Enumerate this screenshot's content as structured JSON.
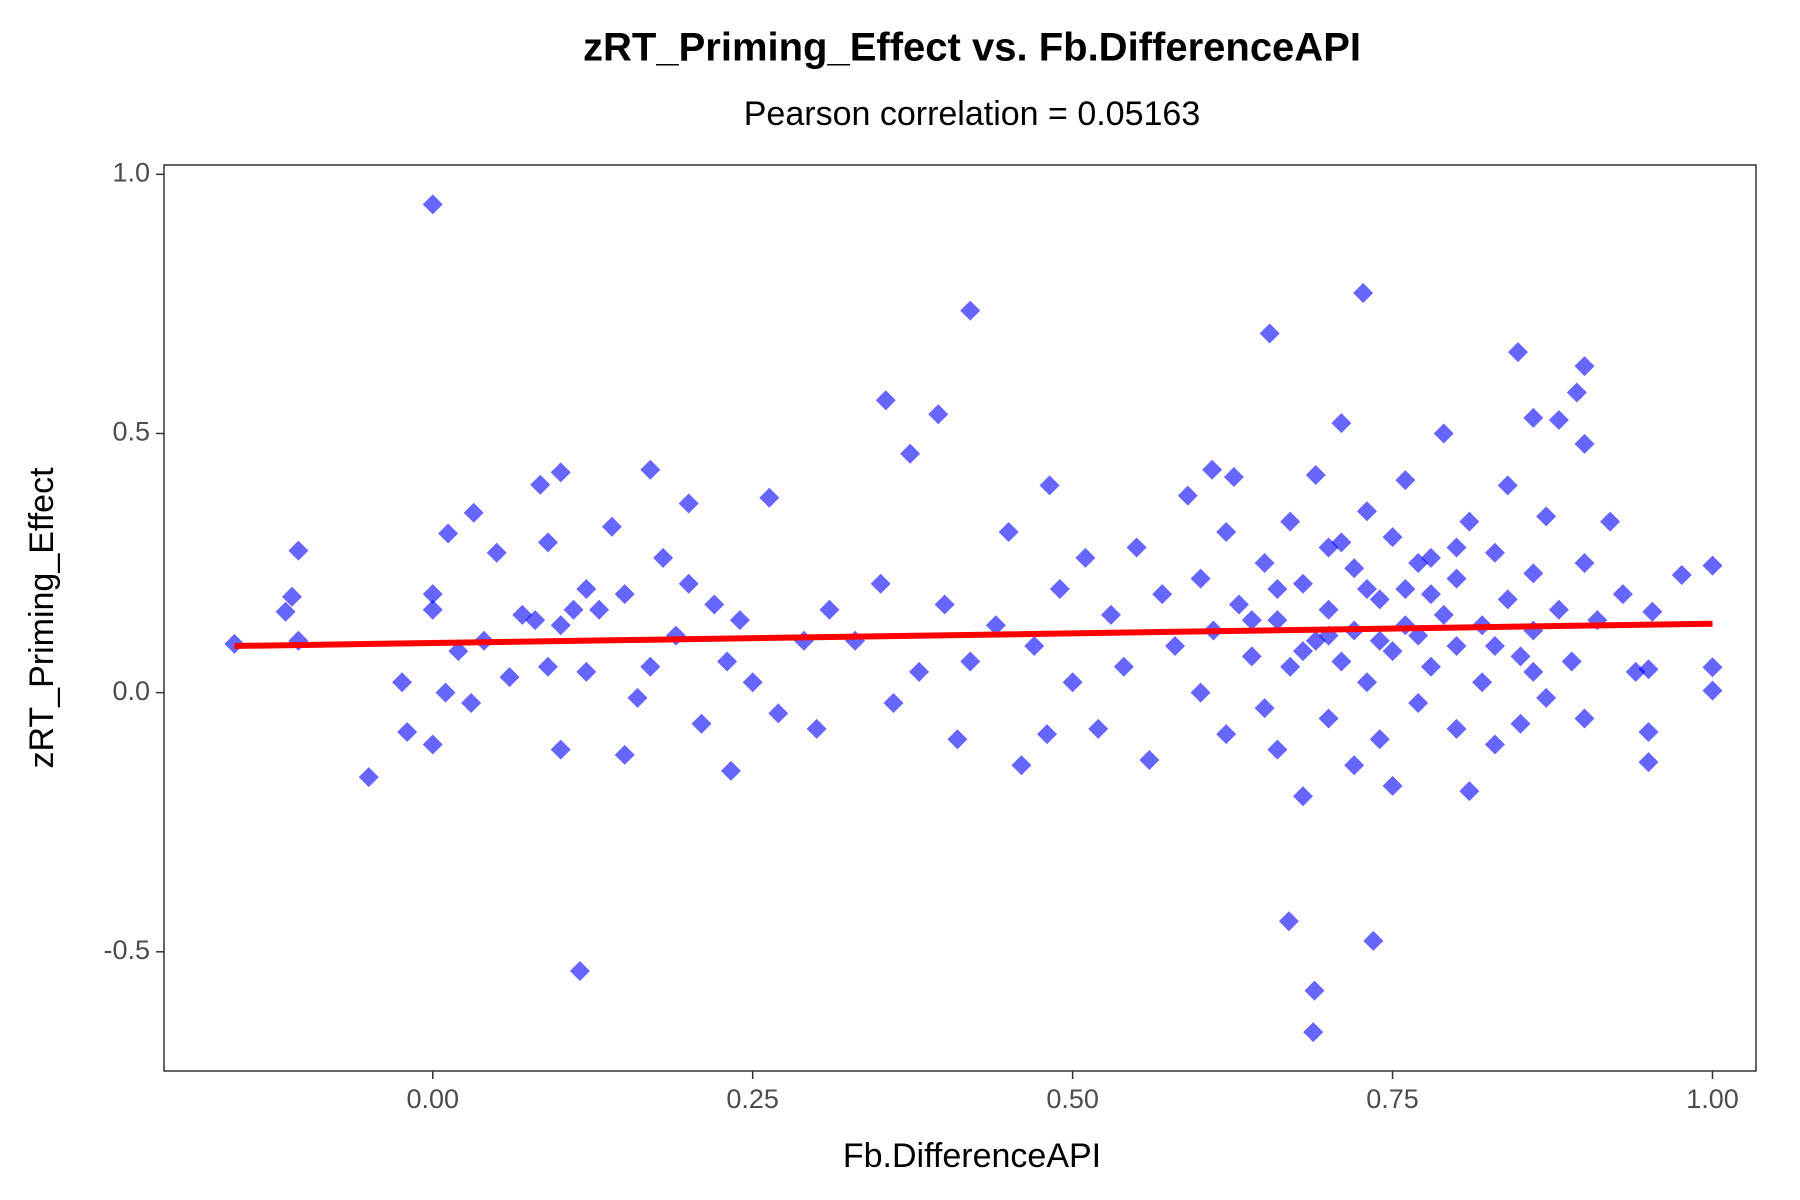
{
  "chart_data": {
    "type": "scatter",
    "title": "zRT_Priming_Effect vs. Fb.DifferenceAPI",
    "subtitle": "Pearson correlation = 0.05163",
    "x_label": "Fb.DifferenceAPI",
    "y_label": "zRT_Priming_Effect",
    "xlim": [
      -0.21,
      1.034
    ],
    "ylim": [
      -0.73,
      1.018
    ],
    "xticks": [
      {
        "value": 0,
        "label": "0.00"
      },
      {
        "value": 0.25,
        "label": "0.25"
      },
      {
        "value": 0.5,
        "label": "0.50"
      },
      {
        "value": 0.75,
        "label": "0.75"
      },
      {
        "value": 1,
        "label": "1.00"
      }
    ],
    "yticks": [
      {
        "value": -0.5,
        "label": "-0.5"
      },
      {
        "value": 0,
        "label": "0.0"
      },
      0.5,
      {
        "value": 1,
        "label": "1.0"
      }
    ],
    "points": {
      "color": "#0000ff",
      "opacity": 0.6,
      "x": [
        0,
        0.42,
        0.727,
        0.654,
        0.115,
        0.669,
        0.735,
        0.689,
        0.688,
        -0.05,
        -0.155,
        -0.105,
        -0.11,
        -0.115,
        -0.105,
        0.354,
        0.395,
        0.373,
        0.848,
        0.9,
        0.894,
        1.0,
        1.0,
        1.0,
        0.976,
        0.95,
        0.95,
        0.95,
        0.953,
        0.482,
        0.233,
        0,
        -0.02,
        -0.024,
        0.1,
        0.084,
        0.17,
        0.032,
        0.012,
        0.263,
        0.2,
        0.609,
        0.626,
        0.88,
        0.86,
        0.05,
        0.07,
        0.08,
        0.09,
        0.1,
        0.11,
        0.12,
        0.13,
        0.14,
        0.15,
        0.16,
        0.17,
        0.18,
        0.19,
        0.2,
        0.21,
        0.22,
        0.23,
        0.24,
        0.25,
        0.27,
        0.29,
        0.3,
        0.31,
        0.33,
        0.35,
        0.36,
        0.38,
        0.4,
        0.41,
        0.42,
        0.44,
        0.45,
        0.46,
        0.47,
        0.48,
        0.49,
        0.06,
        0.02,
        0.0,
        0.0,
        0.01,
        0.04,
        0.1,
        0.12,
        0.03,
        0.09,
        0.15,
        0.5,
        0.51,
        0.52,
        0.53,
        0.54,
        0.55,
        0.56,
        0.57,
        0.58,
        0.59,
        0.6,
        0.6,
        0.61,
        0.62,
        0.62,
        0.63,
        0.64,
        0.65,
        0.65,
        0.66,
        0.66,
        0.67,
        0.67,
        0.68,
        0.68,
        0.69,
        0.69,
        0.7,
        0.7,
        0.7,
        0.71,
        0.71,
        0.72,
        0.72,
        0.72,
        0.73,
        0.73,
        0.74,
        0.74,
        0.75,
        0.75,
        0.75,
        0.76,
        0.76,
        0.77,
        0.77,
        0.78,
        0.78,
        0.79,
        0.79,
        0.8,
        0.8,
        0.8,
        0.81,
        0.81,
        0.82,
        0.82,
        0.83,
        0.83,
        0.84,
        0.84,
        0.85,
        0.85,
        0.86,
        0.86,
        0.87,
        0.87,
        0.88,
        0.89,
        0.9,
        0.9,
        0.9,
        0.91,
        0.92,
        0.93,
        0.94,
        0.73,
        0.76,
        0.68,
        0.71,
        0.78,
        0.74,
        0.8,
        0.66,
        0.83,
        0.7,
        0.77,
        0.64,
        0.86
      ],
      "y": [
        0.942,
        0.737,
        0.771,
        0.693,
        -0.537,
        -0.441,
        -0.479,
        -0.575,
        -0.655,
        -0.163,
        0.094,
        0.274,
        0.185,
        0.156,
        0.1,
        0.564,
        0.537,
        0.461,
        0.657,
        0.63,
        0.579,
        0.245,
        0.049,
        0.004,
        0.227,
        0.045,
        -0.076,
        -0.134,
        0.156,
        0.4,
        -0.151,
        -0.1,
        -0.076,
        0.02,
        0.425,
        0.401,
        0.43,
        0.347,
        0.307,
        0.376,
        0.365,
        0.43,
        0.416,
        0.526,
        0.53,
        0.27,
        0.15,
        0.14,
        0.05,
        0.13,
        0.16,
        0.04,
        0.16,
        0.32,
        0.19,
        -0.01,
        0.05,
        0.26,
        0.11,
        0.21,
        -0.06,
        0.17,
        0.06,
        0.14,
        0.02,
        -0.04,
        0.1,
        -0.07,
        0.16,
        0.1,
        0.21,
        -0.02,
        0.04,
        0.17,
        -0.09,
        0.06,
        0.13,
        0.31,
        -0.14,
        0.09,
        -0.08,
        0.2,
        0.03,
        0.08,
        0.19,
        0.16,
        0.0,
        0.1,
        -0.11,
        0.2,
        -0.02,
        0.29,
        -0.12,
        0.02,
        0.26,
        -0.07,
        0.15,
        0.05,
        0.28,
        -0.13,
        0.19,
        0.09,
        0.38,
        0.0,
        0.22,
        0.12,
        0.31,
        -0.08,
        0.17,
        0.07,
        0.25,
        -0.03,
        0.14,
        -0.11,
        0.33,
        0.05,
        0.21,
        -0.2,
        0.1,
        0.42,
        0.28,
        -0.05,
        0.16,
        0.06,
        0.52,
        0.24,
        -0.14,
        0.12,
        0.35,
        0.02,
        0.18,
        -0.09,
        0.3,
        0.08,
        -0.18,
        0.2,
        0.41,
        0.11,
        -0.02,
        0.26,
        0.05,
        0.5,
        0.15,
        -0.07,
        0.22,
        0.09,
        0.33,
        -0.19,
        0.13,
        0.02,
        0.27,
        -0.1,
        0.18,
        0.4,
        0.07,
        -0.06,
        0.23,
        0.12,
        0.34,
        -0.01,
        0.16,
        0.06,
        0.25,
        0.48,
        -0.05,
        0.14,
        0.33,
        0.19,
        0.04,
        0.2,
        0.13,
        0.08,
        0.29,
        0.19,
        0.1,
        0.28,
        0.2,
        0.09,
        0.11,
        0.25,
        0.14,
        0.04
      ]
    },
    "fit_line": {
      "color": "#ff0000",
      "x": [
        -0.155,
        1.0
      ],
      "y": [
        0.09,
        0.133
      ]
    }
  }
}
